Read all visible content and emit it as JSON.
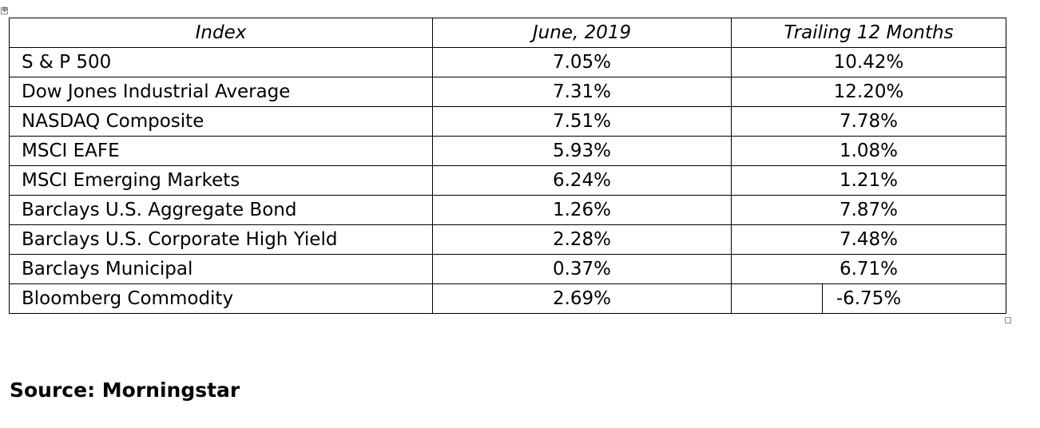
{
  "table": {
    "headers": [
      "Index",
      "June, 2019",
      "Trailing 12 Months"
    ],
    "rows": [
      {
        "index": "S & P 500",
        "june_2019": "7.05%",
        "trailing_12_months": "10.42%"
      },
      {
        "index": "Dow Jones Industrial Average",
        "june_2019": "7.31%",
        "trailing_12_months": "12.20%"
      },
      {
        "index": "NASDAQ Composite",
        "june_2019": "7.51%",
        "trailing_12_months": "7.78%"
      },
      {
        "index": "MSCI EAFE",
        "june_2019": "5.93%",
        "trailing_12_months": "1.08%"
      },
      {
        "index": "MSCI Emerging Markets",
        "june_2019": "6.24%",
        "trailing_12_months": "1.21%"
      },
      {
        "index": "Barclays U.S. Aggregate Bond",
        "june_2019": "1.26%",
        "trailing_12_months": "7.87%"
      },
      {
        "index": "Barclays U.S. Corporate High Yield",
        "june_2019": "2.28%",
        "trailing_12_months": "7.48%"
      },
      {
        "index": "Barclays Municipal",
        "june_2019": "0.37%",
        "trailing_12_months": "6.71%"
      },
      {
        "index": "Bloomberg Commodity",
        "june_2019": "2.69%",
        "trailing_12_months": "-6.75%"
      }
    ]
  },
  "source": "Source: Morningstar",
  "icons": {
    "move_handle": "table-move-handle-icon",
    "resize_handle": "table-resize-handle-icon"
  }
}
